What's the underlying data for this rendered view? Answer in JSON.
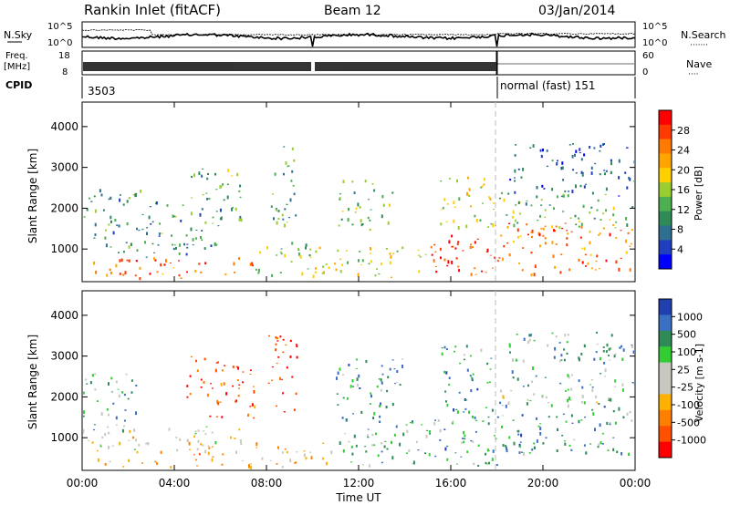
{
  "header": {
    "title": "Rankin Inlet (fitACF)",
    "beam": "Beam 12",
    "date": "03/Jan/2014"
  },
  "top_panels": {
    "nsky_label": "N.Sky",
    "nsky_ticks": [
      "10^5",
      "10^0"
    ],
    "nsearch_label": "N.Search",
    "nsearch_ticks": [
      "10^5",
      "10^0"
    ],
    "freq_label_line1": "Freq.",
    "freq_label_line2": "[MHz]",
    "freq_ticks": [
      "18",
      "8"
    ],
    "nave_label": "Nave",
    "nave_ticks": [
      "60",
      "0"
    ],
    "cpid_label": "CPID",
    "cpid_segments": [
      {
        "text": "3503",
        "start_hour": 0
      },
      {
        "text": "normal (fast) 151",
        "start_hour": 18
      }
    ],
    "mode_change_hour": 18,
    "gap_hour": 10
  },
  "x_axis": {
    "label": "Time UT",
    "ticks": [
      "00:00",
      "04:00",
      "08:00",
      "12:00",
      "16:00",
      "20:00",
      "00:00"
    ],
    "range_hours": [
      0,
      24
    ]
  },
  "chart_data": [
    {
      "type": "heatmap",
      "ylabel": "Slant Range [km]",
      "yticks": [
        1000,
        2000,
        3000,
        4000
      ],
      "ylim": [
        200,
        4600
      ],
      "colorbar_label": "Power [dB]",
      "colorbar_ticks": [
        "28",
        "24",
        "20",
        "16",
        "12",
        "8",
        "4"
      ],
      "colorbar_colors": [
        "#ff0000",
        "#ff3a00",
        "#ff7a00",
        "#ffa500",
        "#ffd000",
        "#9acd32",
        "#4caf50",
        "#2e8b57",
        "#2f6f8f",
        "#1f3fbf",
        "#0000ff"
      ],
      "regions": [
        {
          "t0": 0.3,
          "t1": 3.0,
          "r0": 300,
          "r1": 900,
          "level": 0.85
        },
        {
          "t0": 0.0,
          "t1": 2.5,
          "r0": 900,
          "r1": 2500,
          "level": 0.35
        },
        {
          "t0": 3.0,
          "t1": 7.5,
          "r0": 300,
          "r1": 800,
          "level": 0.8
        },
        {
          "t0": 2.5,
          "t1": 6.0,
          "r0": 800,
          "r1": 2200,
          "level": 0.3
        },
        {
          "t0": 4.5,
          "t1": 7.0,
          "r0": 1600,
          "r1": 3000,
          "level": 0.4
        },
        {
          "t0": 8.0,
          "t1": 9.3,
          "r0": 1600,
          "r1": 3600,
          "level": 0.35
        },
        {
          "t0": 7.5,
          "t1": 10.0,
          "r0": 300,
          "r1": 1200,
          "level": 0.45
        },
        {
          "t0": 10.0,
          "t1": 15.0,
          "r0": 300,
          "r1": 1100,
          "level": 0.55
        },
        {
          "t0": 11.0,
          "t1": 13.5,
          "r0": 1500,
          "r1": 2700,
          "level": 0.4
        },
        {
          "t0": 15.0,
          "t1": 18.0,
          "r0": 300,
          "r1": 1500,
          "level": 0.9
        },
        {
          "t0": 15.5,
          "t1": 18.0,
          "r0": 1500,
          "r1": 2800,
          "level": 0.55
        },
        {
          "t0": 18.0,
          "t1": 24.0,
          "r0": 400,
          "r1": 1700,
          "level": 0.8
        },
        {
          "t0": 18.0,
          "t1": 24.0,
          "r0": 1500,
          "r1": 2400,
          "level": 0.4
        },
        {
          "t0": 18.5,
          "t1": 24.0,
          "r0": 2300,
          "r1": 3600,
          "level": 0.2
        }
      ]
    },
    {
      "type": "heatmap",
      "ylabel": "Slant Range [km]",
      "yticks": [
        1000,
        2000,
        3000,
        4000
      ],
      "ylim": [
        200,
        4600
      ],
      "colorbar_label": "Velocity [m s-1]",
      "colorbar_ticks": [
        "1000",
        "500",
        "100",
        "25",
        "-25",
        "-100",
        "-500",
        "-1000"
      ],
      "colorbar_colors": [
        "#2040b0",
        "#3a6fc4",
        "#2e8b57",
        "#33cc33",
        "#c8c8c0",
        "#c8c8c0",
        "#ffb000",
        "#ff8000",
        "#ff5000",
        "#ff0000"
      ],
      "regions": [
        {
          "t0": 0.0,
          "t1": 2.5,
          "r0": 300,
          "r1": 1200,
          "level": 0.45
        },
        {
          "t0": 0.0,
          "t1": 2.5,
          "r0": 1200,
          "r1": 2600,
          "level": 0.7
        },
        {
          "t0": 2.5,
          "t1": 7.5,
          "r0": 300,
          "r1": 900,
          "level": 0.35
        },
        {
          "t0": 3.0,
          "t1": 7.0,
          "r0": 900,
          "r1": 1300,
          "level": 0.5
        },
        {
          "t0": 4.5,
          "t1": 7.5,
          "r0": 1500,
          "r1": 3000,
          "level": 0.15
        },
        {
          "t0": 8.0,
          "t1": 9.3,
          "r0": 1600,
          "r1": 3600,
          "level": 0.1
        },
        {
          "t0": 7.5,
          "t1": 11.0,
          "r0": 300,
          "r1": 900,
          "level": 0.35
        },
        {
          "t0": 11.0,
          "t1": 15.5,
          "r0": 300,
          "r1": 1500,
          "level": 0.7
        },
        {
          "t0": 11.0,
          "t1": 14.0,
          "r0": 1500,
          "r1": 3000,
          "level": 0.75
        },
        {
          "t0": 15.5,
          "t1": 18.0,
          "r0": 300,
          "r1": 3300,
          "level": 0.75
        },
        {
          "t0": 18.0,
          "t1": 24.0,
          "r0": 600,
          "r1": 2000,
          "level": 0.75
        },
        {
          "t0": 18.0,
          "t1": 22.5,
          "r0": 1800,
          "r1": 2200,
          "level": 0.5
        },
        {
          "t0": 18.5,
          "t1": 24.0,
          "r0": 2200,
          "r1": 3600,
          "level": 0.7
        }
      ]
    }
  ]
}
